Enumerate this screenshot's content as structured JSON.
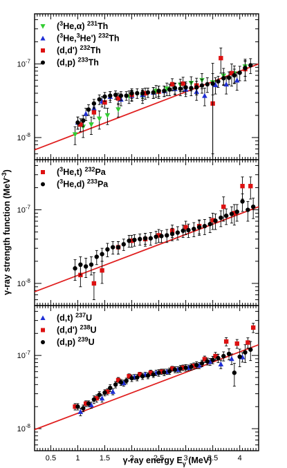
{
  "figure": {
    "xlabel": "γ-ray energy E",
    "xlabel_sub": "γ",
    "xlabel_unit": " (MeV)",
    "ylabel": "γ-ray strength function (MeV",
    "ylabel_sup": "-3",
    "ylabel_end": ")"
  },
  "chart_data": [
    {
      "type": "scatter",
      "xlim": [
        0.2,
        4.35
      ],
      "ylim": [
        5e-09,
        4.8e-07
      ],
      "yscale": "log",
      "x_ticks": [
        0.5,
        1,
        1.5,
        2,
        2.5,
        3,
        3.5,
        4
      ],
      "y_ticks": [
        1e-08,
        1e-07
      ],
      "grid": false,
      "legend_position": "top-left",
      "legend": [
        {
          "pre": "(",
          "sup1": "3",
          "mid": "He,α) ",
          "sup2": "231",
          "post": "Th"
        },
        {
          "pre": "(",
          "sup1": "3",
          "mid": "He,",
          "sup1b": "3",
          "mid2": "He') ",
          "sup2": "232",
          "post": "Th"
        },
        {
          "pre": "(d,d') ",
          "sup2": "232",
          "post": "Th"
        },
        {
          "pre": "(d,p) ",
          "sup2": "233",
          "post": "Th"
        }
      ],
      "fit_line": {
        "x": [
          0.2,
          4.35
        ],
        "y": [
          6.8e-09,
          1e-07
        ]
      },
      "series": [
        {
          "marker": "triangle-down",
          "color": "#33cc33",
          "x": [
            0.95,
            1.1,
            1.25,
            1.4,
            1.55,
            1.75,
            1.95,
            2.2,
            2.45,
            2.65,
            2.9,
            3.1,
            3.3,
            3.5,
            3.7,
            3.9,
            4.1
          ],
          "y": [
            1.1e-08,
            1.4e-08,
            1.5e-08,
            1.8e-08,
            2e-08,
            2.4e-08,
            3.6e-08,
            3.6e-08,
            4.3e-08,
            4.6e-08,
            5.2e-08,
            5.5e-08,
            6e-08,
            5.6e-08,
            6.9e-08,
            7.4e-08,
            9.2e-08
          ],
          "err": [
            3e-09,
            4e-09,
            4e-09,
            5e-09,
            5e-09,
            5e-09,
            7e-09,
            7e-09,
            8e-09,
            9e-09,
            1e-08,
            1.2e-08,
            1.4e-08,
            1.8e-08,
            1.8e-08,
            2e-08,
            2.4e-08
          ]
        },
        {
          "marker": "triangle-up",
          "color": "#1f2fd6",
          "x": [
            1.0,
            1.15,
            1.3,
            1.45,
            1.6,
            1.8,
            2.0,
            2.2,
            2.4,
            2.6,
            2.8,
            3.0,
            3.2,
            3.35,
            3.55,
            3.75,
            3.95
          ],
          "y": [
            1.6e-08,
            2.1e-08,
            2.5e-08,
            3.1e-08,
            3.6e-08,
            3.3e-08,
            3.7e-08,
            3.8e-08,
            4.1e-08,
            4.3e-08,
            4.6e-08,
            4.5e-08,
            4.2e-08,
            3.7e-08,
            5.2e-08,
            5.3e-08,
            6e-08
          ],
          "err": [
            3e-09,
            4e-09,
            4e-09,
            5e-09,
            6e-09,
            6e-09,
            6e-09,
            6e-09,
            7e-09,
            7e-09,
            8e-09,
            9e-09,
            1e-08,
            1e-08,
            1.3e-08,
            1.4e-08,
            1.6e-08
          ]
        },
        {
          "marker": "square",
          "color": "#dd1111",
          "x": [
            1.05,
            1.3,
            1.5,
            1.75,
            2.0,
            2.25,
            2.5,
            2.75,
            2.95,
            3.2,
            3.5,
            3.65,
            3.85,
            4.1
          ],
          "y": [
            1.5e-08,
            2.2e-08,
            3e-08,
            3.4e-08,
            3.8e-08,
            4e-08,
            4.2e-08,
            5.3e-08,
            5.4e-08,
            5.1e-08,
            2.9e-08,
            1.2e-07,
            7.5e-08,
            8.5e-08
          ],
          "err": [
            3e-09,
            4e-09,
            5e-09,
            6e-09,
            6e-09,
            7e-09,
            8e-09,
            1e-08,
            1.2e-08,
            1.3e-08,
            2.4e-08,
            4.5e-08,
            2.5e-08,
            2.6e-08
          ]
        },
        {
          "marker": "circle",
          "color": "#000000",
          "x": [
            1.0,
            1.1,
            1.2,
            1.3,
            1.4,
            1.5,
            1.6,
            1.7,
            1.8,
            1.9,
            2.0,
            2.1,
            2.2,
            2.3,
            2.4,
            2.5,
            2.6,
            2.7,
            2.8,
            2.9,
            3.0,
            3.1,
            3.2,
            3.3,
            3.4,
            3.5,
            3.6,
            3.7,
            3.8,
            3.9,
            4.0,
            4.1,
            4.2
          ],
          "y": [
            1.6e-08,
            1.7e-08,
            2.4e-08,
            2.9e-08,
            3.3e-08,
            3.6e-08,
            3.7e-08,
            3.8e-08,
            3.7e-08,
            3.7e-08,
            4e-08,
            4e-08,
            4e-08,
            4.1e-08,
            4.1e-08,
            4.3e-08,
            4.3e-08,
            4.5e-08,
            4.7e-08,
            4.6e-08,
            4.8e-08,
            4.7e-08,
            4.8e-08,
            5.1e-08,
            5.3e-08,
            5.4e-08,
            5.8e-08,
            6.4e-08,
            6.5e-08,
            7e-08,
            7.6e-08,
            8.8e-08,
            9.6e-08
          ],
          "err": [
            3e-09,
            3e-09,
            4e-09,
            4e-09,
            5e-09,
            5e-09,
            5e-09,
            5e-09,
            5e-09,
            5e-09,
            6e-09,
            6e-09,
            6e-09,
            6e-09,
            7e-09,
            7e-09,
            7e-09,
            8e-09,
            8e-09,
            9e-09,
            9e-09,
            1e-08,
            1e-08,
            1.1e-08,
            1.2e-08,
            4.8e-08,
            1e-08,
            1.2e-08,
            1.3e-08,
            1.5e-08,
            1.7e-08,
            2e-08,
            2.2e-08
          ]
        }
      ]
    },
    {
      "type": "scatter",
      "xlim": [
        0.2,
        4.35
      ],
      "ylim": [
        5e-09,
        4.8e-07
      ],
      "yscale": "log",
      "x_ticks": [
        0.5,
        1,
        1.5,
        2,
        2.5,
        3,
        3.5,
        4
      ],
      "y_ticks": [
        1e-08,
        1e-07
      ],
      "grid": false,
      "legend_position": "top-left",
      "legend": [
        {
          "pre": "(",
          "sup1": "3",
          "mid": "He,t) ",
          "sup2": "232",
          "post": "Pa"
        },
        {
          "pre": "(",
          "sup1": "3",
          "mid": "He,d) ",
          "sup2": "233",
          "post": "Pa"
        }
      ],
      "fit_line": {
        "x": [
          0.2,
          4.35
        ],
        "y": [
          7.7e-09,
          1.1e-07
        ]
      },
      "series": [
        {
          "marker": "square",
          "color": "#dd1111",
          "x": [
            1.05,
            1.3,
            1.45,
            1.75,
            2.0,
            2.25,
            2.5,
            2.75,
            3.0,
            3.25,
            3.5,
            3.7,
            3.9,
            4.05,
            4.2
          ],
          "y": [
            1.3e-08,
            1e-08,
            1.5e-08,
            3.1e-08,
            3.8e-08,
            4e-08,
            4.5e-08,
            5.2e-08,
            5.8e-08,
            6e-08,
            7.2e-08,
            1.1e-07,
            9e-08,
            2.1e-07,
            2.1e-07
          ],
          "err": [
            4e-09,
            4e-09,
            5e-09,
            6e-09,
            7e-09,
            8e-09,
            9e-09,
            1e-08,
            1.2e-08,
            1.3e-08,
            1.8e-08,
            4e-08,
            2.8e-08,
            7e-08,
            7e-08
          ]
        },
        {
          "marker": "circle",
          "color": "#000000",
          "x": [
            0.95,
            1.05,
            1.15,
            1.25,
            1.35,
            1.45,
            1.55,
            1.65,
            1.75,
            1.85,
            1.95,
            2.05,
            2.15,
            2.25,
            2.35,
            2.45,
            2.55,
            2.65,
            2.75,
            2.85,
            2.95,
            3.05,
            3.15,
            3.25,
            3.35,
            3.45,
            3.55,
            3.65,
            3.75,
            3.85,
            3.95,
            4.05,
            4.15,
            4.25
          ],
          "y": [
            1.6e-08,
            1.8e-08,
            1.7e-08,
            1.8e-08,
            2.3e-08,
            2.5e-08,
            2.9e-08,
            3.1e-08,
            3.1e-08,
            3.4e-08,
            3.8e-08,
            3.9e-08,
            4e-08,
            4.1e-08,
            4.1e-08,
            4.3e-08,
            4.4e-08,
            4.5e-08,
            4.7e-08,
            4.9e-08,
            5.2e-08,
            5.3e-08,
            5.5e-08,
            5.8e-08,
            6e-08,
            6.4e-08,
            7.1e-08,
            7.8e-08,
            8.3e-08,
            8.8e-08,
            9.4e-08,
            1.3e-07,
            1e-07,
            1.1e-07
          ],
          "err": [
            5e-09,
            5e-09,
            5e-09,
            5e-09,
            5e-09,
            5e-09,
            6e-09,
            6e-09,
            6e-09,
            6e-09,
            7e-09,
            7e-09,
            7e-09,
            7e-09,
            8e-09,
            8e-09,
            8e-09,
            9e-09,
            9e-09,
            1e-08,
            1e-08,
            1.1e-08,
            1.2e-08,
            1.3e-08,
            1.4e-08,
            1.5e-08,
            1.7e-08,
            1.9e-08,
            2e-08,
            2.2e-08,
            2.4e-08,
            3.5e-08,
            3e-08,
            3.4e-08
          ]
        }
      ]
    },
    {
      "type": "scatter",
      "xlim": [
        0.2,
        4.35
      ],
      "ylim": [
        5e-09,
        4.8e-07
      ],
      "yscale": "log",
      "x_ticks": [
        0.5,
        1,
        1.5,
        2,
        2.5,
        3,
        3.5,
        4
      ],
      "y_ticks": [
        1e-08,
        1e-07
      ],
      "grid": false,
      "legend_position": "top-left",
      "legend": [
        {
          "pre": "(d,t) ",
          "sup2": "237",
          "post": "U"
        },
        {
          "pre": "(d,d') ",
          "sup2": "238",
          "post": "U"
        },
        {
          "pre": "(d,p) ",
          "sup2": "239",
          "post": "U"
        }
      ],
      "fit_line": {
        "x": [
          0.2,
          4.35
        ],
        "y": [
          9.7e-09,
          1.4e-07
        ]
      },
      "series": [
        {
          "marker": "triangle-up",
          "color": "#1f2fd6",
          "x": [
            1.05,
            1.25,
            1.45,
            1.65,
            1.85,
            2.05,
            2.25,
            2.45,
            2.65,
            2.85,
            3.05,
            3.25,
            3.45,
            3.65,
            3.85,
            4.05
          ],
          "y": [
            1.7e-08,
            2.1e-08,
            2.6e-08,
            3.2e-08,
            4.2e-08,
            5.1e-08,
            5.5e-08,
            5.8e-08,
            6e-08,
            6.4e-08,
            6.8e-08,
            7.3e-08,
            8.2e-08,
            7.6e-08,
            9e-08,
            9.5e-08
          ],
          "err": [
            2e-09,
            2e-09,
            3e-09,
            3e-09,
            4e-09,
            4e-09,
            4e-09,
            5e-09,
            5e-09,
            6e-09,
            6e-09,
            7e-09,
            9e-09,
            1e-08,
            1.5e-08,
            1.4e-08
          ]
        },
        {
          "marker": "square",
          "color": "#dd1111",
          "x": [
            0.95,
            1.15,
            1.35,
            1.55,
            1.75,
            1.95,
            2.15,
            2.35,
            2.55,
            2.75,
            2.95,
            3.15,
            3.35,
            3.55,
            3.75,
            3.95,
            4.15,
            4.25
          ],
          "y": [
            2e-08,
            2.2e-08,
            2.6e-08,
            3.2e-08,
            4.6e-08,
            5.2e-08,
            5.5e-08,
            5.8e-08,
            6e-08,
            6.6e-08,
            6.8e-08,
            7.2e-08,
            8.9e-08,
            9.8e-08,
            1.55e-07,
            1.45e-07,
            1.5e-07,
            2.4e-07
          ],
          "err": [
            2e-09,
            2e-09,
            3e-09,
            3e-09,
            4e-09,
            4e-09,
            4e-09,
            5e-09,
            5e-09,
            5e-09,
            6e-09,
            7e-09,
            9e-09,
            1.2e-08,
            2e-08,
            2e-08,
            2.4e-08,
            3.5e-08
          ]
        },
        {
          "marker": "circle",
          "color": "#000000",
          "x": [
            1.0,
            1.1,
            1.2,
            1.3,
            1.4,
            1.5,
            1.6,
            1.7,
            1.8,
            1.9,
            2.0,
            2.1,
            2.2,
            2.3,
            2.4,
            2.5,
            2.6,
            2.7,
            2.8,
            2.9,
            3.0,
            3.1,
            3.2,
            3.3,
            3.4,
            3.5,
            3.6,
            3.7,
            3.8,
            3.9,
            4.0,
            4.1,
            4.2
          ],
          "y": [
            2e-08,
            1.9e-08,
            2.2e-08,
            2.5e-08,
            2.9e-08,
            3.1e-08,
            3.6e-08,
            4e-08,
            4.3e-08,
            4.5e-08,
            4.9e-08,
            5e-08,
            5.2e-08,
            5.3e-08,
            5.5e-08,
            5.8e-08,
            5.9e-08,
            6.1e-08,
            6.4e-08,
            6.6e-08,
            6.8e-08,
            7e-08,
            7.4e-08,
            7.8e-08,
            8.3e-08,
            8.7e-08,
            9.2e-08,
            9.8e-08,
            1.05e-07,
            5.8e-08,
            9.6e-08,
            1.1e-07,
            1.2e-07
          ],
          "err": [
            2e-09,
            2e-09,
            2e-09,
            3e-09,
            3e-09,
            3e-09,
            4e-09,
            4e-09,
            4e-09,
            4e-09,
            5e-09,
            5e-09,
            5e-09,
            5e-09,
            5e-09,
            6e-09,
            6e-09,
            6e-09,
            6e-09,
            7e-09,
            7e-09,
            7e-09,
            8e-09,
            8e-09,
            9e-09,
            1e-08,
            1.2e-08,
            1.4e-08,
            1.8e-08,
            2e-08,
            2.6e-08,
            3e-08,
            3.5e-08
          ]
        }
      ]
    }
  ]
}
